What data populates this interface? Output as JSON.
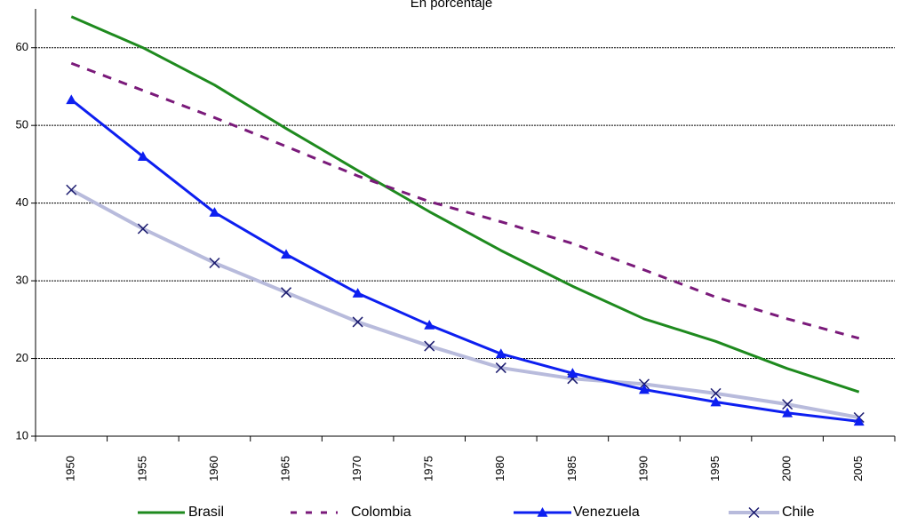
{
  "chart_data": {
    "type": "line",
    "subtitle": "En porcentaje",
    "categories": [
      "1950",
      "1955",
      "1960",
      "1965",
      "1970",
      "1975",
      "1980",
      "1985",
      "1990",
      "1995",
      "2000",
      "2005"
    ],
    "ylim": [
      10,
      65
    ],
    "yticks": [
      10,
      20,
      30,
      40,
      50,
      60
    ],
    "grid": true,
    "legend_position": "bottom",
    "series": [
      {
        "name": "Brasil",
        "color": "#1e8a1e",
        "style": "solid",
        "marker": "none",
        "values": [
          64.0,
          60.0,
          55.2,
          49.6,
          44.2,
          38.9,
          33.9,
          29.3,
          25.1,
          22.2,
          18.7,
          15.7
        ]
      },
      {
        "name": "Colombia",
        "color": "#7a1a7a",
        "style": "dashed",
        "marker": "none",
        "values": [
          58.0,
          54.5,
          51.0,
          47.3,
          43.5,
          40.2,
          37.6,
          34.8,
          31.4,
          27.9,
          25.1,
          22.6
        ]
      },
      {
        "name": "Venezuela",
        "color": "#0d1ff0",
        "style": "solid",
        "marker": "triangle",
        "values": [
          53.3,
          46.0,
          38.8,
          33.4,
          28.4,
          24.3,
          20.6,
          18.1,
          16.0,
          14.4,
          13.0,
          11.9
        ]
      },
      {
        "name": "Chile",
        "color": "#b8bbdc",
        "style": "solid",
        "marker": "x",
        "values": [
          41.7,
          36.7,
          32.3,
          28.5,
          24.7,
          21.6,
          18.8,
          17.4,
          16.7,
          15.5,
          14.1,
          12.4
        ]
      }
    ]
  }
}
